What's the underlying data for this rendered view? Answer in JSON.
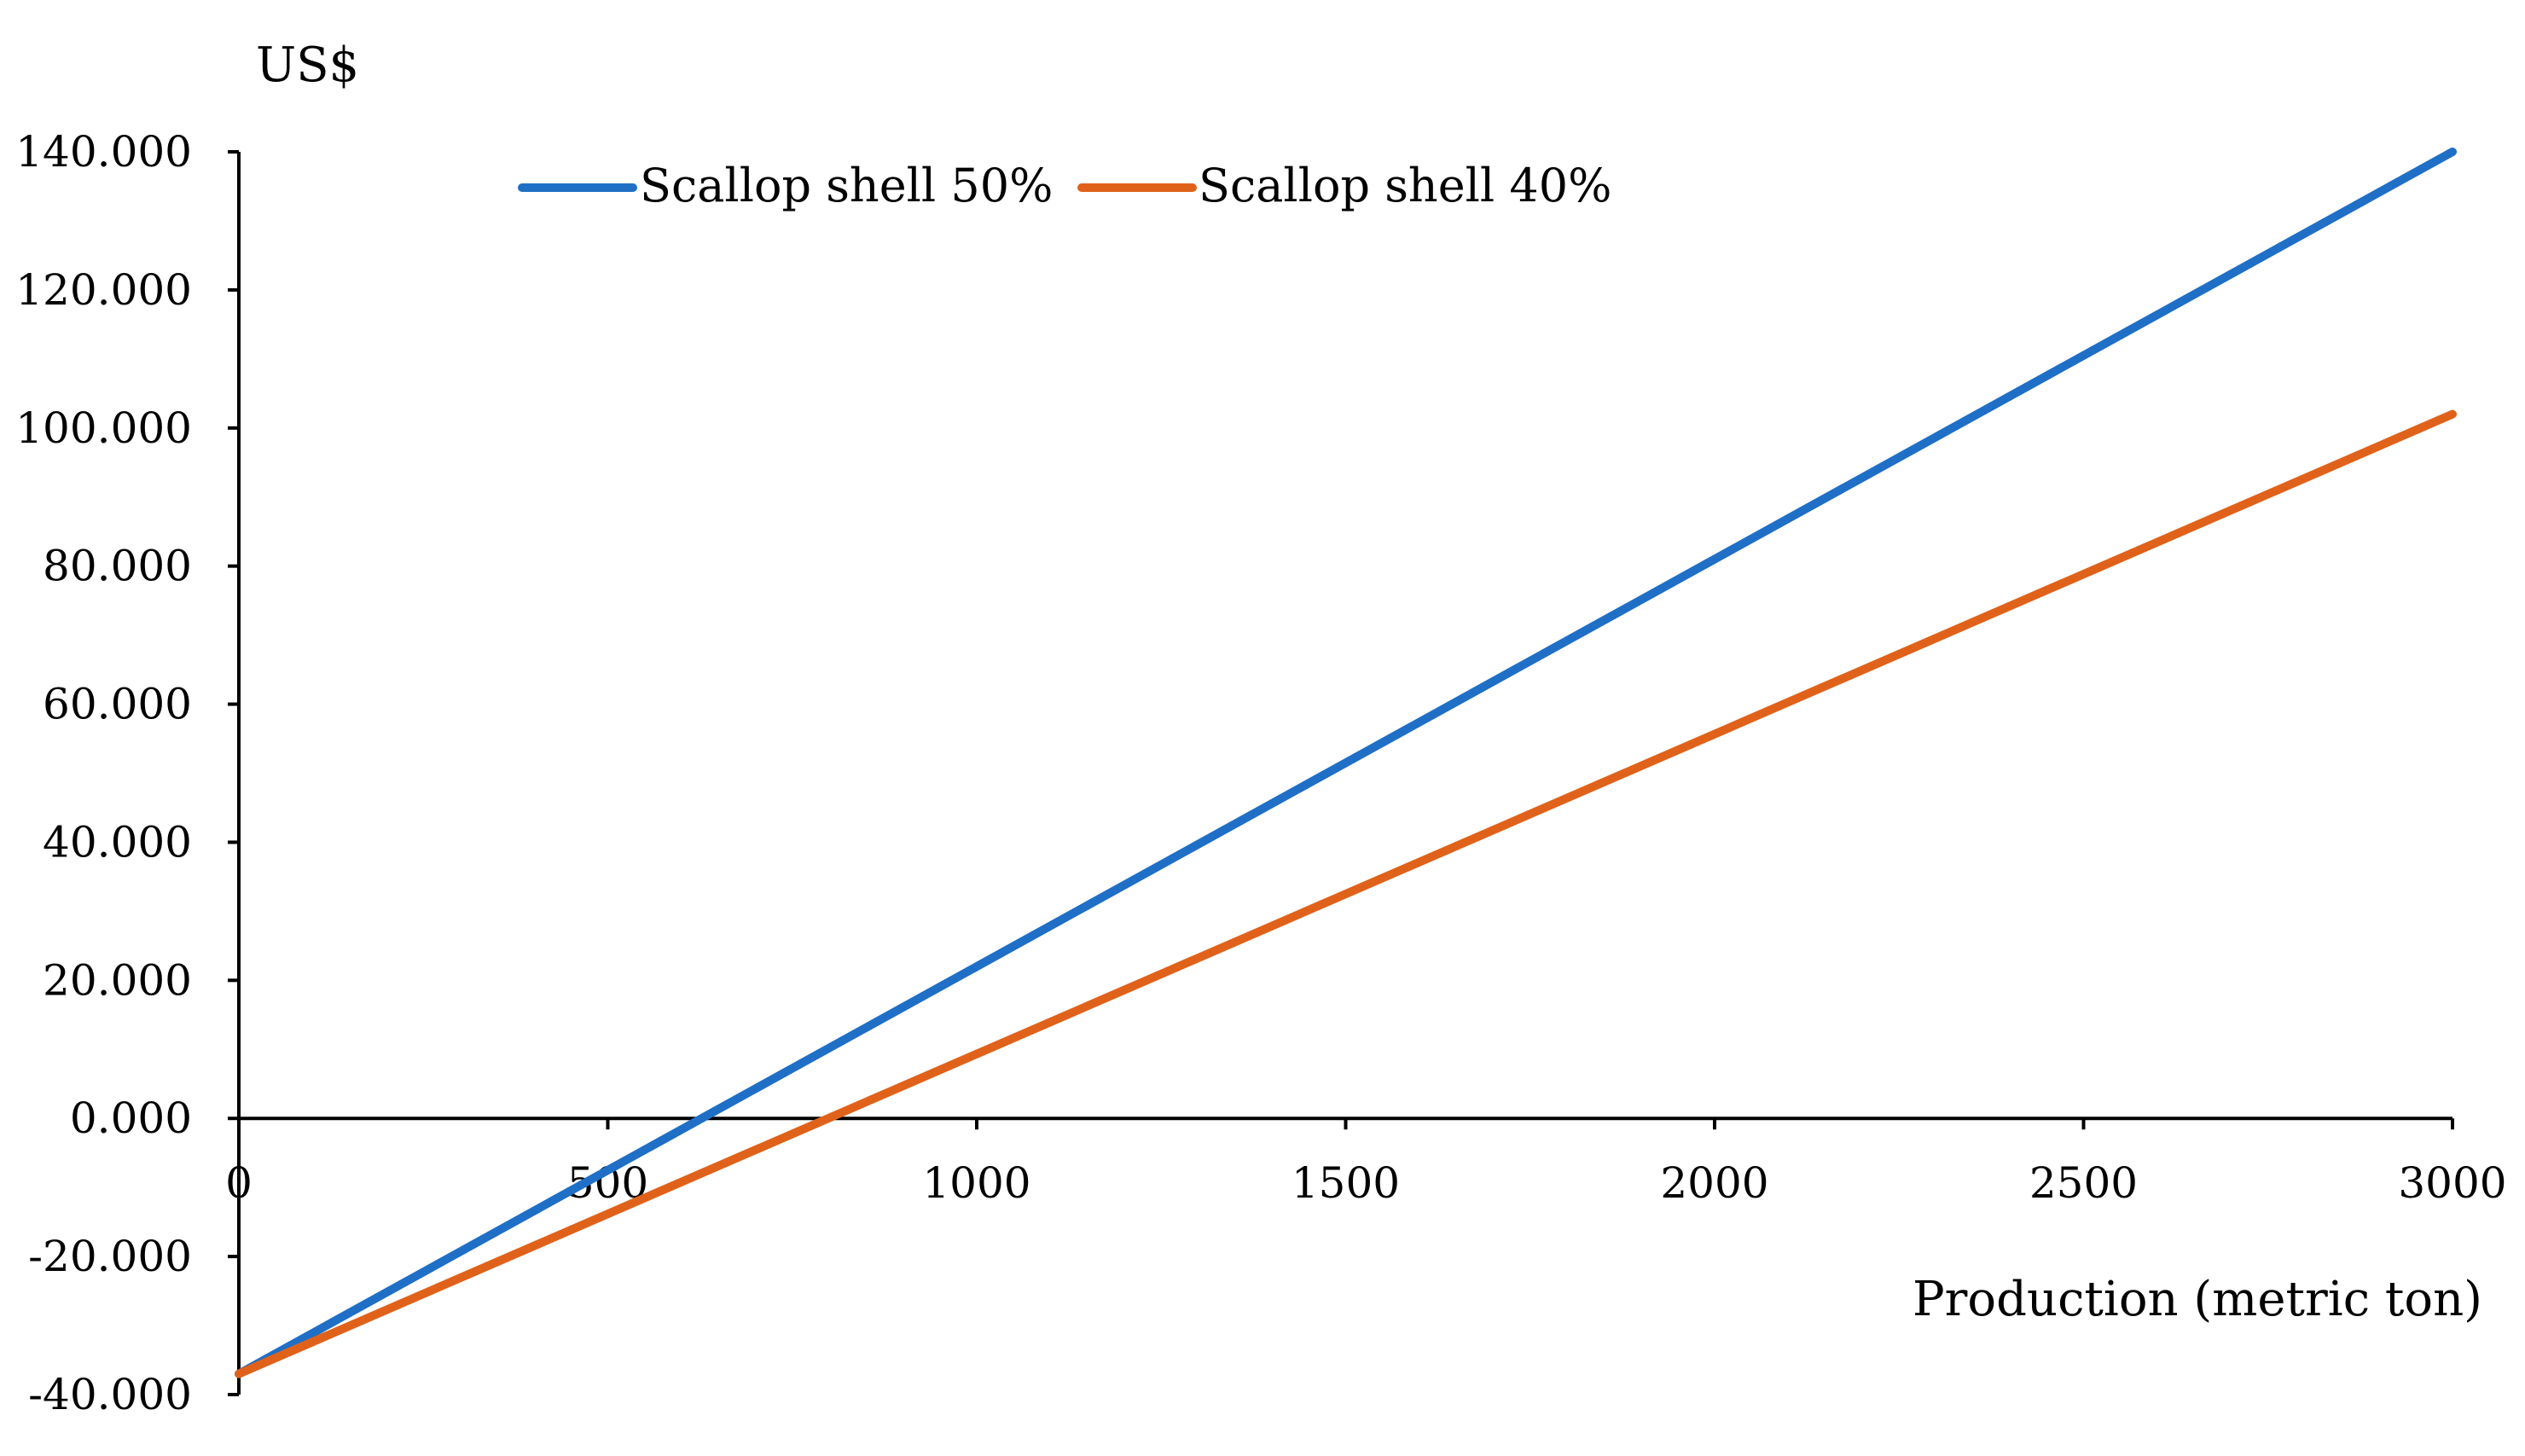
{
  "chart_data": {
    "type": "line",
    "title": "",
    "ylabel": "US$",
    "xlabel": "Production (metric ton)",
    "x": [
      0,
      3000
    ],
    "xlim": [
      0,
      3000
    ],
    "ylim": [
      -40,
      140
    ],
    "xticks": [
      0,
      500,
      1000,
      1500,
      2000,
      2500,
      3000
    ],
    "xtick_labels": [
      "0",
      "500",
      "1000",
      "1500",
      "2000",
      "2500",
      "3000"
    ],
    "yticks": [
      -40,
      -20,
      0,
      20,
      40,
      60,
      80,
      100,
      120,
      140
    ],
    "ytick_labels": [
      "-40.000",
      "-20.000",
      "0.000",
      "20.000",
      "40.000",
      "60.000",
      "80.000",
      "100.000",
      "120.000",
      "140.000"
    ],
    "grid": false,
    "legend_position": "top-left",
    "series": [
      {
        "name": "Scallop shell 50%",
        "color": "#1f6fc6",
        "values": [
          -37,
          140
        ]
      },
      {
        "name": "Scallop shell 40%",
        "color": "#e0621a",
        "values": [
          -37,
          102
        ]
      }
    ]
  }
}
